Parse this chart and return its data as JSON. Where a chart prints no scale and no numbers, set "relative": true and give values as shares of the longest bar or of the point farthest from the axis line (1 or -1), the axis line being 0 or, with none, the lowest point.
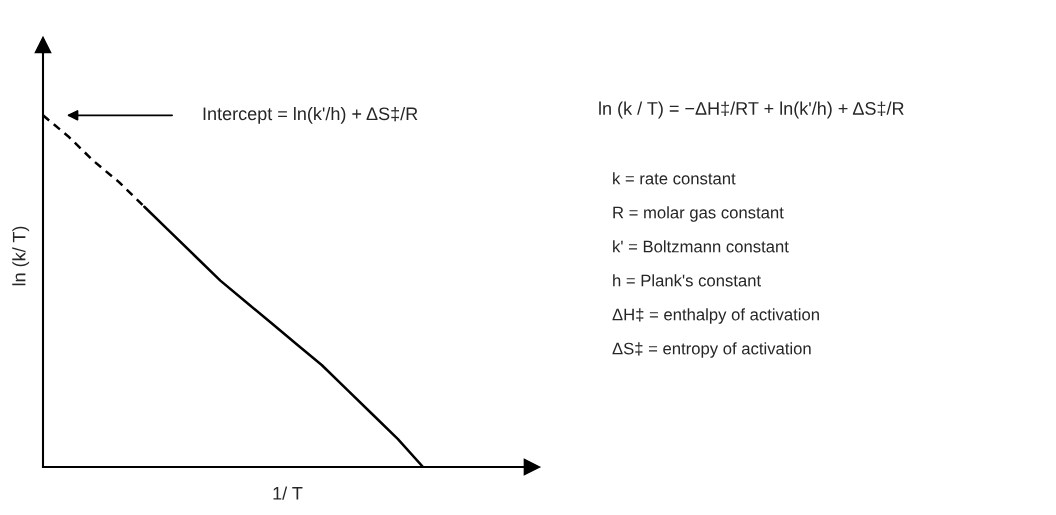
{
  "chart_data": {
    "type": "line",
    "relative": true,
    "tick_labels": false,
    "xlabel": "1/ T",
    "ylabel": "ln (k/ T)",
    "categories": [
      null,
      null,
      null,
      null,
      null,
      null,
      null,
      null,
      null,
      null,
      null,
      null,
      null,
      null,
      null,
      null,
      null,
      null,
      null,
      null
    ],
    "series": [
      {
        "color": "#000000",
        "line_style": "dashed",
        "values": [
          1.0,
          0.94,
          0.87,
          0.81,
          0.74,
          null,
          null,
          null,
          null,
          null,
          null,
          null,
          null,
          null,
          null,
          null,
          null,
          null,
          null,
          null
        ]
      },
      {
        "color": "#000000",
        "line_style": "solid",
        "values": [
          null,
          null,
          null,
          null,
          0.74,
          0.67,
          0.6,
          0.53,
          0.47,
          0.41,
          0.35,
          0.29,
          0.22,
          0.15,
          0.08,
          0.0,
          null,
          null,
          null,
          null
        ]
      }
    ],
    "annotations": [
      "Intercept = ln(k'/h) + ΔS‡/R",
      "ln (k / T) = −ΔH‡/RT + ln(k'/h) + ΔS‡/R",
      "k = rate constant",
      "R = molar gas constant",
      "k' = Boltzmann constant",
      "h = Plank's constant",
      "ΔH‡ = enthalpy of activation",
      "ΔS‡ = entropy of activation"
    ]
  }
}
